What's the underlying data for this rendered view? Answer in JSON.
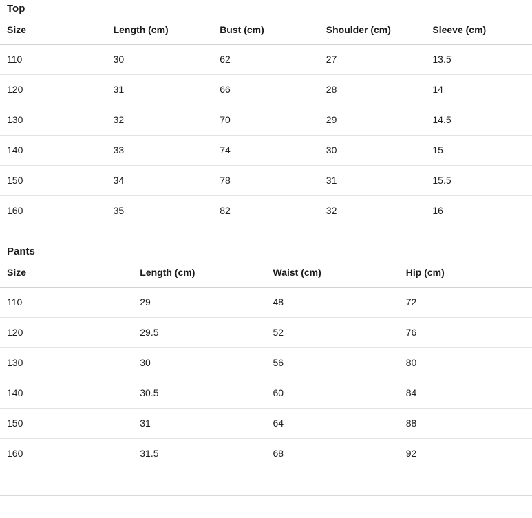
{
  "page": {
    "background_color": "#ffffff",
    "text_color": "#1a1a1a",
    "header_border_color": "#d2d2d2",
    "row_border_color": "#e3e3e3",
    "divider_color": "#d9d9d9"
  },
  "sections": [
    {
      "title": "Top",
      "table": {
        "columns": [
          "Size",
          "Length (cm)",
          "Bust (cm)",
          "Shoulder (cm)",
          "Sleeve (cm)"
        ],
        "rows": [
          [
            "110",
            "30",
            "62",
            "27",
            "13.5"
          ],
          [
            "120",
            "31",
            "66",
            "28",
            "14"
          ],
          [
            "130",
            "32",
            "70",
            "29",
            "14.5"
          ],
          [
            "140",
            "33",
            "74",
            "30",
            "15"
          ],
          [
            "150",
            "34",
            "78",
            "31",
            "15.5"
          ],
          [
            "160",
            "35",
            "82",
            "32",
            "16"
          ]
        ]
      }
    },
    {
      "title": "Pants",
      "table": {
        "columns": [
          "Size",
          "Length (cm)",
          "Waist (cm)",
          "Hip (cm)"
        ],
        "rows": [
          [
            "110",
            "29",
            "48",
            "72"
          ],
          [
            "120",
            "29.5",
            "52",
            "76"
          ],
          [
            "130",
            "30",
            "56",
            "80"
          ],
          [
            "140",
            "30.5",
            "60",
            "84"
          ],
          [
            "150",
            "31",
            "64",
            "88"
          ],
          [
            "160",
            "31.5",
            "68",
            "92"
          ]
        ]
      }
    }
  ]
}
